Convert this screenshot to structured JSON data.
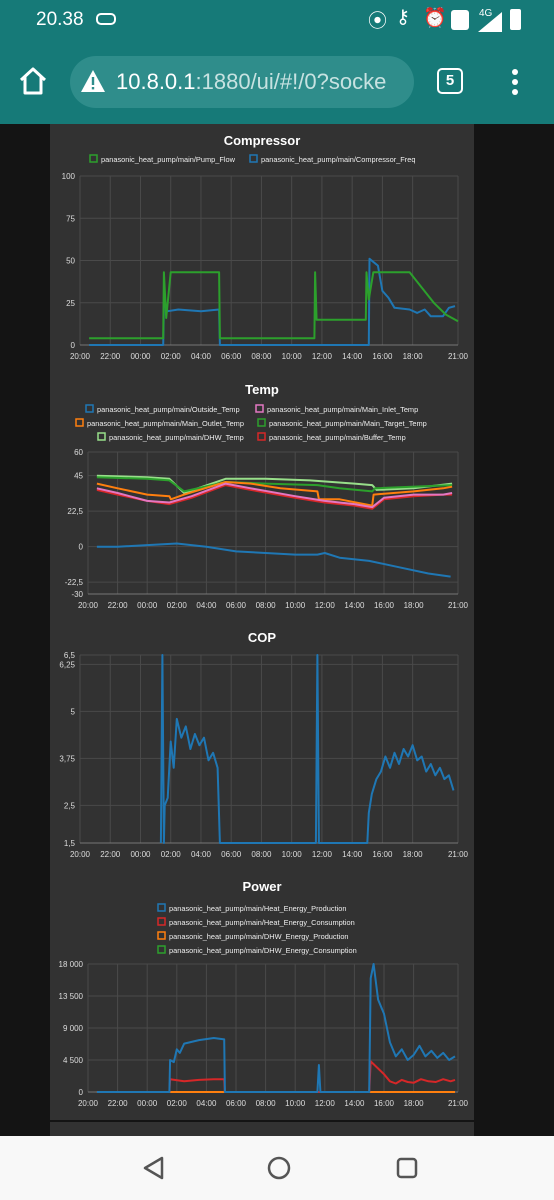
{
  "status_bar": {
    "time": "20.38",
    "network": "4G",
    "icons": [
      "usb-icon",
      "hotspot-icon",
      "vpn-key-icon",
      "alarm-icon",
      "volte-icon",
      "signal-icon",
      "battery-icon"
    ]
  },
  "browser": {
    "url_host": "10.8.0.1",
    "url_rest": ":1880/ui/#!/0?socke",
    "tab_count": "5",
    "icons": [
      "home-icon",
      "warning-icon",
      "tabs-icon",
      "menu-icon"
    ]
  },
  "nav_bar": {
    "icons": [
      "back-icon",
      "home-circle-icon",
      "recents-icon"
    ]
  },
  "colors": {
    "blue": "#1f77b4",
    "green": "#2ca02c",
    "red": "#d62728",
    "orange": "#ff7f0e",
    "yellowgreen": "#bcbd22",
    "pink": "#e377c2",
    "lightgreen": "#98df8a",
    "header_teal": "#167a78"
  },
  "chart_data": [
    {
      "type": "line",
      "title": "Compressor",
      "xticks": [
        "20:00",
        "22:00",
        "00:00",
        "02:00",
        "04:00",
        "06:00",
        "08:00",
        "10:00",
        "12:00",
        "14:00",
        "16:00",
        "18:00",
        "21:00"
      ],
      "yticks": [
        "0",
        "25",
        "50",
        "75",
        "100"
      ],
      "ylim": [
        0,
        100
      ],
      "x_hours": [
        0,
        25
      ],
      "grid": true,
      "legend_position": "top",
      "series": [
        {
          "name": "panasonic_heat_pump/main/Pump_Flow",
          "color": "#2ca02c",
          "points": [
            [
              0.6,
              4
            ],
            [
              5.5,
              4
            ],
            [
              5.55,
              43
            ],
            [
              5.7,
              16
            ],
            [
              6.0,
              43
            ],
            [
              9.2,
              43
            ],
            [
              9.25,
              4
            ],
            [
              15.5,
              4
            ],
            [
              15.55,
              43
            ],
            [
              15.65,
              15
            ],
            [
              16.0,
              15
            ],
            [
              18.9,
              15
            ],
            [
              18.95,
              43
            ],
            [
              19.1,
              27
            ],
            [
              19.4,
              43
            ],
            [
              21.8,
              43
            ],
            [
              22.6,
              34
            ],
            [
              23.4,
              25
            ],
            [
              24.2,
              18
            ],
            [
              25,
              14
            ]
          ]
        },
        {
          "name": "panasonic_heat_pump/main/Compressor_Freq",
          "color": "#1f77b4",
          "points": [
            [
              0.6,
              0
            ],
            [
              5.5,
              0
            ],
            [
              5.55,
              25
            ],
            [
              5.8,
              20
            ],
            [
              6.5,
              21
            ],
            [
              8.0,
              20
            ],
            [
              9.2,
              21
            ],
            [
              9.25,
              0
            ],
            [
              19.1,
              0
            ],
            [
              19.15,
              51
            ],
            [
              19.7,
              47
            ],
            [
              20.0,
              32
            ],
            [
              20.4,
              28
            ],
            [
              20.8,
              22
            ],
            [
              21.8,
              21
            ],
            [
              22.3,
              19
            ],
            [
              22.8,
              21
            ],
            [
              23.2,
              17
            ],
            [
              24.0,
              17
            ],
            [
              24.4,
              22
            ],
            [
              24.8,
              23
            ]
          ]
        }
      ]
    },
    {
      "type": "line",
      "title": "Temp",
      "xticks": [
        "20:00",
        "22:00",
        "00:00",
        "02:00",
        "04:00",
        "06:00",
        "08:00",
        "10:00",
        "12:00",
        "14:00",
        "16:00",
        "18:00",
        "21:00"
      ],
      "yticks": [
        "-30",
        "-22,5",
        "0",
        "22,5",
        "45",
        "60"
      ],
      "ylim": [
        -30,
        60
      ],
      "x_hours": [
        0,
        25
      ],
      "grid": true,
      "legend_position": "top",
      "series": [
        {
          "name": "panasonic_heat_pump/main/Outside_Temp",
          "color": "#1f77b4",
          "points": [
            [
              0.6,
              0
            ],
            [
              2,
              0
            ],
            [
              4,
              1
            ],
            [
              6,
              2
            ],
            [
              8,
              0
            ],
            [
              10,
              -3
            ],
            [
              12,
              -4
            ],
            [
              14,
              -5
            ],
            [
              15.5,
              -5
            ],
            [
              16,
              -4
            ],
            [
              17,
              -7
            ],
            [
              19,
              -9
            ],
            [
              21,
              -13
            ],
            [
              23,
              -17
            ],
            [
              24.5,
              -19
            ]
          ]
        },
        {
          "name": "panasonic_heat_pump/main/Main_Inlet_Temp",
          "color": "#e377c2",
          "points": [
            [
              0.6,
              37
            ],
            [
              2,
              34
            ],
            [
              4,
              29
            ],
            [
              5.5,
              28
            ],
            [
              7,
              32
            ],
            [
              9.3,
              40
            ],
            [
              11,
              37
            ],
            [
              14,
              32
            ],
            [
              16,
              29
            ],
            [
              18,
              27
            ],
            [
              19.2,
              25
            ],
            [
              20,
              31
            ],
            [
              22,
              33
            ],
            [
              24,
              33
            ],
            [
              24.6,
              34
            ]
          ]
        },
        {
          "name": "panasonic_heat_pump/main/Main_Outlet_Temp",
          "color": "#ff7f0e",
          "points": [
            [
              0.6,
              40
            ],
            [
              2,
              37
            ],
            [
              4,
              33
            ],
            [
              5.5,
              32
            ],
            [
              5.6,
              30
            ],
            [
              6.5,
              33
            ],
            [
              9.3,
              41
            ],
            [
              11,
              40
            ],
            [
              13,
              37
            ],
            [
              15.5,
              35
            ],
            [
              15.6,
              30
            ],
            [
              17,
              30
            ],
            [
              19.2,
              26
            ],
            [
              19.3,
              33
            ],
            [
              22,
              35
            ],
            [
              24,
              37
            ],
            [
              24.6,
              38
            ]
          ]
        },
        {
          "name": "panasonic_heat_pump/main/Main_Target_Temp",
          "color": "#2ca02c",
          "points": [
            [
              0.6,
              44
            ],
            [
              4,
              43
            ],
            [
              5.5,
              42
            ],
            [
              6.5,
              35
            ],
            [
              9.3,
              41
            ],
            [
              12,
              40
            ],
            [
              15.5,
              39
            ],
            [
              17,
              37
            ],
            [
              19.2,
              35
            ],
            [
              19.4,
              37
            ],
            [
              24.6,
              39
            ]
          ]
        },
        {
          "name": "panasonic_heat_pump/main/DHW_Temp",
          "color": "#98df8a",
          "points": [
            [
              0.6,
              45
            ],
            [
              4,
              44
            ],
            [
              5.5,
              43
            ],
            [
              6.5,
              34
            ],
            [
              9.3,
              43
            ],
            [
              12,
              43
            ],
            [
              15,
              42
            ],
            [
              18,
              40
            ],
            [
              19.2,
              39
            ],
            [
              19.5,
              36
            ],
            [
              22,
              37
            ],
            [
              24.6,
              40
            ]
          ]
        },
        {
          "name": "panasonic_heat_pump/main/Buffer_Temp",
          "color": "#d62728",
          "points": [
            [
              0.6,
              36
            ],
            [
              2,
              33
            ],
            [
              4,
              29
            ],
            [
              5.5,
              27
            ],
            [
              7,
              31
            ],
            [
              9.3,
              39
            ],
            [
              11,
              36
            ],
            [
              14,
              31
            ],
            [
              16,
              28
            ],
            [
              18,
              26
            ],
            [
              19.2,
              24
            ],
            [
              20,
              30
            ],
            [
              22,
              32
            ],
            [
              24,
              33
            ],
            [
              24.6,
              33
            ]
          ]
        }
      ]
    },
    {
      "type": "line",
      "title": "COP",
      "xticks": [
        "20:00",
        "22:00",
        "00:00",
        "02:00",
        "04:00",
        "06:00",
        "08:00",
        "10:00",
        "12:00",
        "14:00",
        "16:00",
        "18:00",
        "21:00"
      ],
      "yticks": [
        "1,5",
        "2,5",
        "3,75",
        "5",
        "6,25",
        "6,5"
      ],
      "ylim": [
        1.5,
        6.5
      ],
      "x_hours": [
        0,
        25
      ],
      "grid": true,
      "series": [
        {
          "name": "",
          "color": "#1f77b4",
          "points": [
            [
              5.35,
              1.5
            ],
            [
              5.45,
              6.5
            ],
            [
              5.55,
              1.5
            ],
            [
              5.6,
              2.5
            ],
            [
              5.8,
              2.7
            ],
            [
              6.0,
              4.2
            ],
            [
              6.2,
              3.5
            ],
            [
              6.4,
              4.8
            ],
            [
              6.7,
              4.3
            ],
            [
              7.0,
              4.6
            ],
            [
              7.3,
              4.0
            ],
            [
              7.6,
              4.4
            ],
            [
              7.9,
              4.1
            ],
            [
              8.2,
              4.3
            ],
            [
              8.5,
              3.7
            ],
            [
              8.8,
              3.9
            ],
            [
              9.1,
              3.5
            ],
            [
              9.25,
              1.5
            ],
            [
              15.6,
              1.5
            ],
            [
              15.7,
              6.5
            ],
            [
              15.8,
              1.5
            ],
            [
              19.0,
              1.5
            ],
            [
              19.1,
              2.3
            ],
            [
              19.3,
              2.8
            ],
            [
              19.6,
              3.2
            ],
            [
              19.9,
              3.4
            ],
            [
              20.2,
              3.8
            ],
            [
              20.5,
              3.5
            ],
            [
              20.8,
              3.9
            ],
            [
              21.1,
              3.6
            ],
            [
              21.4,
              4.0
            ],
            [
              21.7,
              3.8
            ],
            [
              22.0,
              4.1
            ],
            [
              22.3,
              3.7
            ],
            [
              22.6,
              3.8
            ],
            [
              22.9,
              3.4
            ],
            [
              23.2,
              3.6
            ],
            [
              23.5,
              3.3
            ],
            [
              23.8,
              3.5
            ],
            [
              24.1,
              3.2
            ],
            [
              24.4,
              3.3
            ],
            [
              24.7,
              2.9
            ]
          ]
        }
      ]
    },
    {
      "type": "line",
      "title": "Power",
      "xticks": [
        "20:00",
        "22:00",
        "00:00",
        "02:00",
        "04:00",
        "06:00",
        "08:00",
        "10:00",
        "12:00",
        "14:00",
        "16:00",
        "18:00",
        "21:00"
      ],
      "yticks": [
        "0",
        "4 500",
        "9 000",
        "13 500",
        "18 000"
      ],
      "ylim": [
        0,
        18000
      ],
      "x_hours": [
        0,
        25
      ],
      "grid": true,
      "legend_position": "top",
      "series": [
        {
          "name": "panasonic_heat_pump/main/Heat_Energy_Production",
          "color": "#1f77b4",
          "points": [
            [
              0.6,
              0
            ],
            [
              5.5,
              0
            ],
            [
              5.55,
              4500
            ],
            [
              5.8,
              4200
            ],
            [
              6.0,
              6000
            ],
            [
              6.2,
              5500
            ],
            [
              6.5,
              6800
            ],
            [
              7.5,
              7300
            ],
            [
              8.5,
              7600
            ],
            [
              9.2,
              7400
            ],
            [
              9.25,
              0
            ],
            [
              15.5,
              0
            ],
            [
              15.6,
              3800
            ],
            [
              15.7,
              0
            ],
            [
              19.0,
              0
            ],
            [
              19.1,
              16000
            ],
            [
              19.3,
              18000
            ],
            [
              19.6,
              13000
            ],
            [
              20.0,
              11000
            ],
            [
              20.4,
              7000
            ],
            [
              20.8,
              5000
            ],
            [
              21.2,
              6000
            ],
            [
              21.6,
              4500
            ],
            [
              22.0,
              5200
            ],
            [
              22.4,
              6500
            ],
            [
              22.8,
              5000
            ],
            [
              23.2,
              5800
            ],
            [
              23.6,
              4800
            ],
            [
              24.0,
              5500
            ],
            [
              24.4,
              4500
            ],
            [
              24.8,
              5000
            ]
          ]
        },
        {
          "name": "panasonic_heat_pump/main/Heat_Energy_Consumption",
          "color": "#d62728",
          "points": [
            [
              0.6,
              0
            ],
            [
              5.5,
              0
            ],
            [
              5.55,
              1800
            ],
            [
              6.5,
              1500
            ],
            [
              7.5,
              1700
            ],
            [
              8.5,
              1800
            ],
            [
              9.2,
              1800
            ],
            [
              9.25,
              0
            ],
            [
              19.0,
              0
            ],
            [
              19.1,
              4300
            ],
            [
              19.6,
              3300
            ],
            [
              20.0,
              2500
            ],
            [
              20.4,
              1500
            ],
            [
              20.8,
              1200
            ],
            [
              21.2,
              1700
            ],
            [
              21.6,
              1400
            ],
            [
              22.0,
              1300
            ],
            [
              22.5,
              1800
            ],
            [
              23.0,
              1500
            ],
            [
              23.5,
              1400
            ],
            [
              24.0,
              1800
            ],
            [
              24.5,
              1500
            ],
            [
              24.8,
              1700
            ]
          ]
        },
        {
          "name": "panasonic_heat_pump/main/DHW_Energy_Production",
          "color": "#ff7f0e",
          "points": [
            [
              0.6,
              0
            ],
            [
              24.8,
              0
            ]
          ]
        },
        {
          "name": "panasonic_heat_pump/main/DHW_Energy_Consumption",
          "color": "#2ca02c",
          "points": [
            [
              0.6,
              0
            ],
            [
              24.8,
              0
            ]
          ]
        }
      ]
    }
  ]
}
